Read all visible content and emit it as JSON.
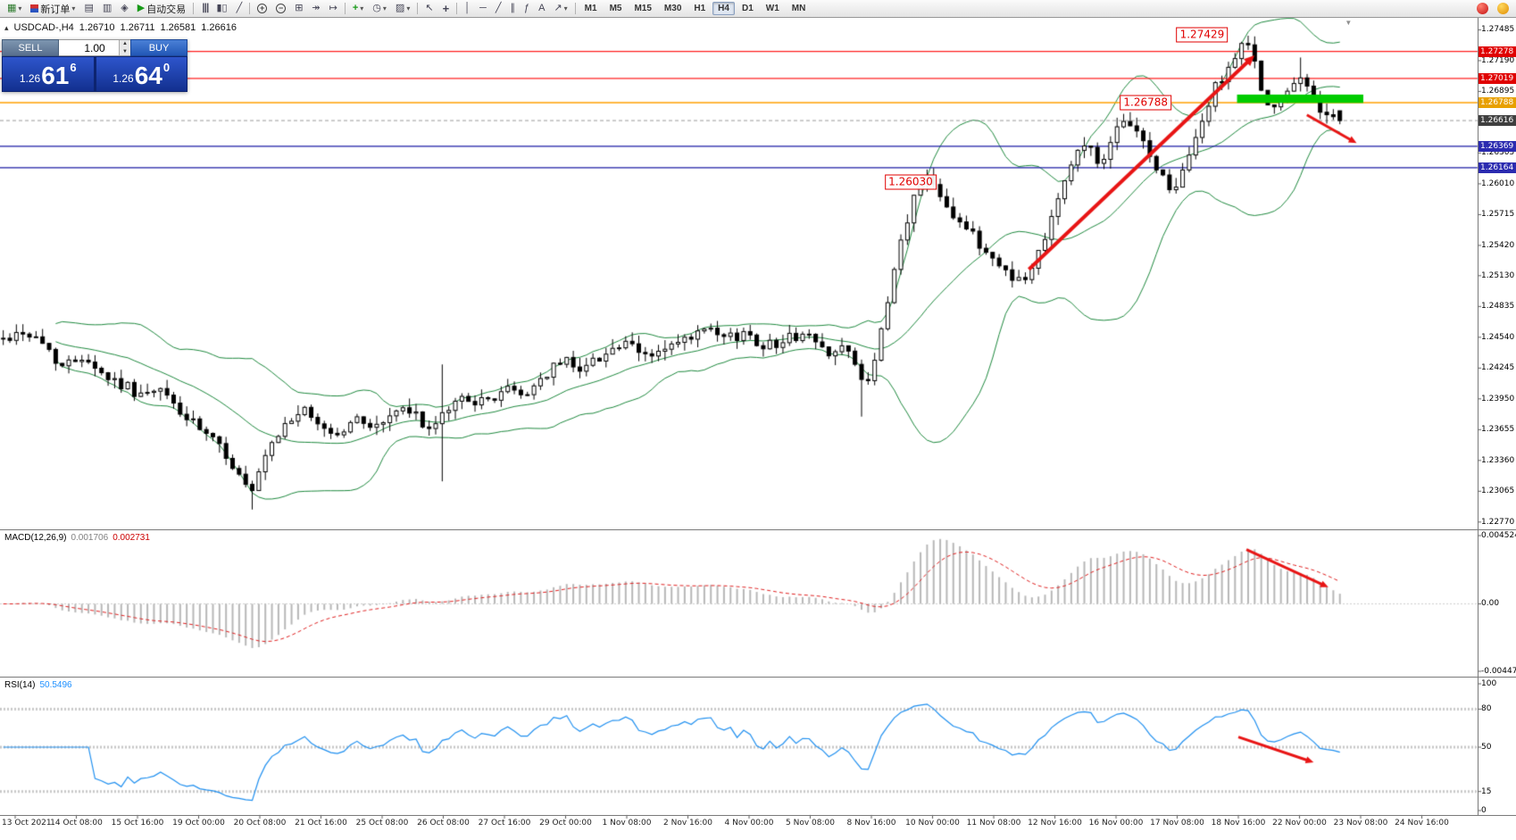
{
  "toolbar": {
    "items": [
      {
        "name": "new-chart",
        "icon": "chart-candles",
        "dropdown": true
      },
      {
        "name": "new-order",
        "icon": "order-arrows",
        "label": "新订单",
        "dropdown": true
      },
      {
        "name": "market-watch",
        "icon": "grid"
      },
      {
        "name": "data-window",
        "icon": "rows"
      },
      {
        "name": "navigator",
        "icon": "compass"
      },
      {
        "name": "autotrading",
        "icon": "play-green",
        "label": "自动交易"
      },
      {
        "sep": true
      },
      {
        "name": "bars-chart",
        "icon": "bars"
      },
      {
        "name": "candlestick-chart",
        "icon": "candles"
      },
      {
        "name": "line-chart",
        "icon": "line"
      },
      {
        "sep": true
      },
      {
        "name": "zoom-in",
        "icon": "zoom-plus"
      },
      {
        "name": "zoom-out",
        "icon": "zoom-minus"
      },
      {
        "name": "tile-windows",
        "icon": "tiles"
      },
      {
        "name": "auto-scroll",
        "icon": "scroll-end"
      },
      {
        "name": "chart-shift",
        "icon": "shift"
      },
      {
        "sep": true
      },
      {
        "name": "indicators",
        "icon": "plus-green",
        "dropdown": true
      },
      {
        "name": "periods",
        "icon": "clock",
        "dropdown": true
      },
      {
        "name": "templates",
        "icon": "template",
        "dropdown": true
      },
      {
        "sep": true
      },
      {
        "name": "cursor",
        "icon": "cursor"
      },
      {
        "name": "crosshair",
        "icon": "crosshair"
      },
      {
        "sep": true
      },
      {
        "name": "vertical-line",
        "icon": "vline"
      },
      {
        "name": "horizontal-line",
        "icon": "hline"
      },
      {
        "name": "trendline",
        "icon": "trendline"
      },
      {
        "name": "equidistant-channel",
        "icon": "channel"
      },
      {
        "name": "fibonacci",
        "icon": "fibo"
      },
      {
        "name": "text-label",
        "icon": "text-a"
      },
      {
        "name": "arrows-tool",
        "icon": "arrow-ne",
        "dropdown": true
      },
      {
        "sep": true
      }
    ],
    "timeframes": [
      "M1",
      "M5",
      "M15",
      "M30",
      "H1",
      "H4",
      "D1",
      "W1",
      "MN"
    ],
    "active_timeframe": "H4"
  },
  "one_click": {
    "sell_label": "SELL",
    "buy_label": "BUY",
    "volume": "1.00",
    "sell_price": {
      "prefix": "1.26",
      "big": "61",
      "sup": "6"
    },
    "buy_price": {
      "prefix": "1.26",
      "big": "64",
      "sup": "0"
    }
  },
  "chart_header": {
    "symbol": "USDCAD-,H4",
    "open": "1.26710",
    "high": "1.26711",
    "low": "1.26581",
    "close": "1.26616"
  },
  "price_axis": {
    "plain": [
      "1.27485",
      "1.27190",
      "1.26895",
      "1.26305",
      "1.26010",
      "1.25715",
      "1.25420",
      "1.25130",
      "1.24835",
      "1.24540",
      "1.24245",
      "1.23950",
      "1.23655",
      "1.23360",
      "1.23065",
      "1.22770"
    ],
    "badges": [
      {
        "text": "1.27278",
        "value": 1.27278,
        "bg": "#e00000"
      },
      {
        "text": "1.27019",
        "value": 1.27019,
        "bg": "#e00000"
      },
      {
        "text": "1.26788",
        "value": 1.26788,
        "bg": "#e8a000"
      },
      {
        "text": "1.26616",
        "value": 1.26616,
        "bg": "#3f3f3f"
      },
      {
        "text": "1.26369",
        "value": 1.26369,
        "bg": "#2b2bb0"
      },
      {
        "text": "1.26164",
        "value": 1.26164,
        "bg": "#2b2bb0"
      }
    ]
  },
  "macd": {
    "label": "MACD(12,26,9)",
    "value_main": "0.001706",
    "value_signal": "0.002731",
    "axis": [
      {
        "text": "0.004524",
        "value": 0.004524
      },
      {
        "text": "0.00",
        "value": 0
      },
      {
        "text": "-0.00447",
        "value": -0.00447
      }
    ]
  },
  "rsi": {
    "label": "RSI(14)",
    "value": "50.5496",
    "axis": [
      {
        "text": "100",
        "value": 100
      },
      {
        "text": "80",
        "value": 80
      },
      {
        "text": "50",
        "value": 50
      },
      {
        "text": "15",
        "value": 15
      },
      {
        "text": "0",
        "value": 0
      }
    ]
  },
  "time_axis": {
    "labels": [
      "13 Oct 2021",
      "14 Oct 08:00",
      "15 Oct 16:00",
      "19 Oct 00:00",
      "20 Oct 08:00",
      "21 Oct 16:00",
      "25 Oct 08:00",
      "26 Oct 08:00",
      "27 Oct 16:00",
      "29 Oct 00:00",
      "1 Nov 08:00",
      "2 Nov 16:00",
      "4 Nov 00:00",
      "5 Nov 08:00",
      "8 Nov 16:00",
      "10 Nov 00:00",
      "11 Nov 08:00",
      "12 Nov 16:00",
      "16 Nov 00:00",
      "17 Nov 08:00",
      "18 Nov 16:00",
      "22 Nov 00:00",
      "23 Nov 08:00",
      "24 Nov 16:00"
    ]
  },
  "annotations": {
    "price_labels": [
      {
        "text": "1.27429",
        "t": 0.895,
        "price": 1.2744
      },
      {
        "text": "1.26788",
        "t": 0.853,
        "price": 1.26788
      },
      {
        "text": "1.26030",
        "t": 0.678,
        "price": 1.2603
      }
    ],
    "arrows_main": [
      {
        "t0": 0.766,
        "p0": 1.2519,
        "t1": 0.934,
        "p1": 1.2724,
        "width": 4
      },
      {
        "t0": 0.973,
        "p0": 1.2667,
        "t1": 1.01,
        "p1": 1.264,
        "width": 3
      }
    ],
    "green_zone": {
      "t0": 0.921,
      "t1": 1.015,
      "price_top": 1.26865,
      "price_bottom": 1.26785,
      "color": "#00cc00"
    },
    "arrow_macd": {
      "t0": 0.928,
      "v0": 0.0036,
      "t1": 0.989,
      "v1": 0.0011,
      "width": 3
    },
    "arrow_rsi": {
      "t0": 0.922,
      "v0": 58,
      "t1": 0.978,
      "v1": 38,
      "width": 3
    },
    "arrow_color": "#e81414"
  },
  "chart_data": {
    "type": "candlestick",
    "symbol": "USDCAD",
    "timeframe": "H4",
    "n_candles": 205,
    "price_top": 1.276,
    "price_bottom": 1.227,
    "candle_area_frac": 0.909,
    "close_path": [
      [
        0.0,
        1.2452
      ],
      [
        0.015,
        1.246
      ],
      [
        0.03,
        1.2448
      ],
      [
        0.045,
        1.2425
      ],
      [
        0.06,
        1.2438
      ],
      [
        0.075,
        1.2418
      ],
      [
        0.09,
        1.2408
      ],
      [
        0.105,
        1.2398
      ],
      [
        0.12,
        1.2402
      ],
      [
        0.135,
        1.2378
      ],
      [
        0.15,
        1.2362
      ],
      [
        0.165,
        1.2345
      ],
      [
        0.178,
        1.2318
      ],
      [
        0.186,
        1.2303
      ],
      [
        0.196,
        1.2338
      ],
      [
        0.21,
        1.2368
      ],
      [
        0.222,
        1.2385
      ],
      [
        0.235,
        1.2372
      ],
      [
        0.25,
        1.236
      ],
      [
        0.265,
        1.2376
      ],
      [
        0.28,
        1.2368
      ],
      [
        0.295,
        1.2385
      ],
      [
        0.31,
        1.2378
      ],
      [
        0.322,
        1.2362
      ],
      [
        0.33,
        1.2382
      ],
      [
        0.345,
        1.2398
      ],
      [
        0.36,
        1.239
      ],
      [
        0.375,
        1.2405
      ],
      [
        0.39,
        1.2398
      ],
      [
        0.405,
        1.2418
      ],
      [
        0.42,
        1.2432
      ],
      [
        0.435,
        1.2424
      ],
      [
        0.45,
        1.244
      ],
      [
        0.465,
        1.2447
      ],
      [
        0.48,
        1.2436
      ],
      [
        0.495,
        1.2442
      ],
      [
        0.51,
        1.245
      ],
      [
        0.525,
        1.246
      ],
      [
        0.54,
        1.2452
      ],
      [
        0.555,
        1.2458
      ],
      [
        0.57,
        1.2446
      ],
      [
        0.585,
        1.2452
      ],
      [
        0.6,
        1.2458
      ],
      [
        0.615,
        1.244
      ],
      [
        0.63,
        1.2446
      ],
      [
        0.643,
        1.2408
      ],
      [
        0.652,
        1.2428
      ],
      [
        0.662,
        1.2488
      ],
      [
        0.672,
        1.2548
      ],
      [
        0.682,
        1.259
      ],
      [
        0.692,
        1.2612
      ],
      [
        0.702,
        1.259
      ],
      [
        0.712,
        1.257
      ],
      [
        0.722,
        1.2556
      ],
      [
        0.732,
        1.254
      ],
      [
        0.745,
        1.2524
      ],
      [
        0.758,
        1.251
      ],
      [
        0.766,
        1.2508
      ],
      [
        0.778,
        1.2548
      ],
      [
        0.79,
        1.2592
      ],
      [
        0.802,
        1.2628
      ],
      [
        0.812,
        1.264
      ],
      [
        0.822,
        1.2618
      ],
      [
        0.833,
        1.265
      ],
      [
        0.844,
        1.2662
      ],
      [
        0.855,
        1.2634
      ],
      [
        0.866,
        1.261
      ],
      [
        0.876,
        1.2592
      ],
      [
        0.886,
        1.2622
      ],
      [
        0.897,
        1.2662
      ],
      [
        0.908,
        1.2696
      ],
      [
        0.919,
        1.2718
      ],
      [
        0.93,
        1.2736
      ],
      [
        0.938,
        1.2712
      ],
      [
        0.946,
        1.2672
      ],
      [
        0.954,
        1.2676
      ],
      [
        0.962,
        1.2688
      ],
      [
        0.97,
        1.2702
      ],
      [
        0.978,
        1.269
      ],
      [
        0.986,
        1.2672
      ],
      [
        0.993,
        1.2668
      ],
      [
        1.0,
        1.26616
      ]
    ],
    "spikes": [
      {
        "t": 0.186,
        "low": 1.2289
      },
      {
        "t": 0.327,
        "low": 1.2316,
        "high": 1.2428
      },
      {
        "t": 0.643,
        "low": 1.2378
      },
      {
        "t": 0.93,
        "high": 1.27429
      },
      {
        "t": 0.97,
        "high": 1.2722
      },
      {
        "t": 1.0,
        "open": 1.2671,
        "high": 1.26711,
        "low": 1.26581,
        "close": 1.26616
      }
    ],
    "bollinger": {
      "period": 20,
      "deviation": 2,
      "color": "#1f8a3f"
    },
    "candle_colors": {
      "bull_fill": "#ffffff",
      "bear_fill": "#000000",
      "outline": "#000000"
    },
    "horizontal_lines": [
      {
        "price": 1.27278,
        "color": "#ff2020",
        "style": "solid",
        "width": 1.2
      },
      {
        "price": 1.27019,
        "color": "#ff2020",
        "style": "solid",
        "width": 1.2
      },
      {
        "price": 1.26788,
        "color": "#ffa000",
        "style": "solid",
        "width": 1.5
      },
      {
        "price": 1.26616,
        "color": "#9a9a9a",
        "style": "dash",
        "width": 1
      },
      {
        "price": 1.26369,
        "color": "#1a1aa6",
        "style": "solid",
        "width": 1.2
      },
      {
        "price": 1.26164,
        "color": "#1a1aa6",
        "style": "solid",
        "width": 1.2
      }
    ],
    "macd": {
      "fast": 12,
      "slow": 26,
      "signal": 9,
      "peak_value": 0.0043,
      "vmax": 0.004524,
      "vmin": -0.00447,
      "hist_color": "#b8b8b8",
      "signal_color": "#e02020"
    },
    "rsi": {
      "period": 14,
      "color": "#2090f0",
      "levels": [
        80,
        50,
        15
      ],
      "last_value": 50.5496
    }
  }
}
